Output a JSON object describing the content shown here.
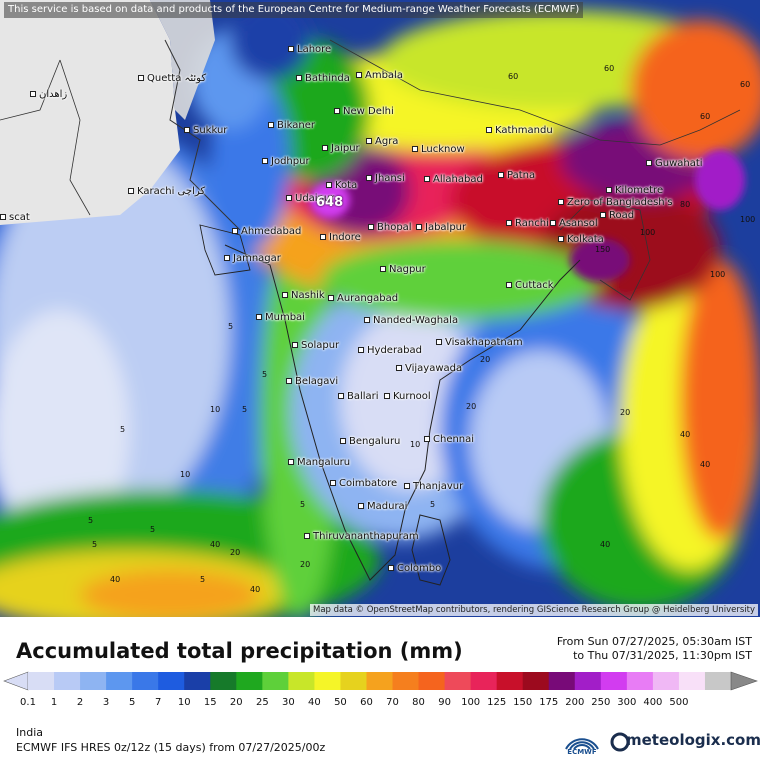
{
  "map": {
    "notice": "This service is based on data and products of the European Centre for Medium-range Weather Forecasts (ECMWF)",
    "attribution": "Map data © OpenStreetMap contributors, rendering GIScience Research Group @ Heidelberg University",
    "cities": [
      {
        "name": "Lahore",
        "key": "lahore"
      },
      {
        "name": "Quetta کوئٹہ",
        "key": "quetta"
      },
      {
        "name": "Bathinda",
        "key": "bathinda"
      },
      {
        "name": "Ambala",
        "key": "ambala"
      },
      {
        "name": "زاهدان",
        "key": "zahedan"
      },
      {
        "name": "New Delhi",
        "key": "new-delhi"
      },
      {
        "name": "Sukkur",
        "key": "sukkur"
      },
      {
        "name": "Bikaner",
        "key": "bikaner"
      },
      {
        "name": "Kathmandu",
        "key": "kathmandu"
      },
      {
        "name": "Jaipur",
        "key": "jaipur"
      },
      {
        "name": "Agra",
        "key": "agra"
      },
      {
        "name": "Lucknow",
        "key": "lucknow"
      },
      {
        "name": "Jodhpur",
        "key": "jodhpur"
      },
      {
        "name": "Guwahati",
        "key": "guwahati"
      },
      {
        "name": "Karachi کراچی",
        "key": "karachi"
      },
      {
        "name": "Jhansi",
        "key": "jhansi"
      },
      {
        "name": "Allahabad",
        "key": "allahabad"
      },
      {
        "name": "Patna",
        "key": "patna"
      },
      {
        "name": "Kota",
        "key": "kota"
      },
      {
        "name": "Kilometre",
        "key": "kilometre"
      },
      {
        "name": "Zero of Bangladesh's",
        "key": "zero-bangladesh"
      },
      {
        "name": "Road",
        "key": "road"
      },
      {
        "name": "Udaipur",
        "key": "udaipur"
      },
      {
        "name": "scat",
        "key": "muscat"
      },
      {
        "name": "Ahmedabad",
        "key": "ahmedabad"
      },
      {
        "name": "Bhopal",
        "key": "bhopal"
      },
      {
        "name": "Jabalpur",
        "key": "jabalpur"
      },
      {
        "name": "Ranchi",
        "key": "ranchi"
      },
      {
        "name": "Asansol",
        "key": "asansol"
      },
      {
        "name": "Indore",
        "key": "indore"
      },
      {
        "name": "Kolkata",
        "key": "kolkata"
      },
      {
        "name": "Jamnagar",
        "key": "jamnagar"
      },
      {
        "name": "Nagpur",
        "key": "nagpur"
      },
      {
        "name": "Cuttack",
        "key": "cuttack"
      },
      {
        "name": "Nashik",
        "key": "nashik"
      },
      {
        "name": "Aurangabad",
        "key": "aurangabad"
      },
      {
        "name": "Mumbai",
        "key": "mumbai"
      },
      {
        "name": "Nanded-Waghala",
        "key": "nanded"
      },
      {
        "name": "Visakhapatnam",
        "key": "visakhapatnam"
      },
      {
        "name": "Solapur",
        "key": "solapur"
      },
      {
        "name": "Hyderabad",
        "key": "hyderabad"
      },
      {
        "name": "Vijayawada",
        "key": "vijayawada"
      },
      {
        "name": "Belagavi",
        "key": "belagavi"
      },
      {
        "name": "Ballari",
        "key": "ballari"
      },
      {
        "name": "Kurnool",
        "key": "kurnool"
      },
      {
        "name": "Bengaluru",
        "key": "bengaluru"
      },
      {
        "name": "Chennai",
        "key": "chennai"
      },
      {
        "name": "Mangaluru",
        "key": "mangaluru"
      },
      {
        "name": "Coimbatore",
        "key": "coimbatore"
      },
      {
        "name": "Thanjavur",
        "key": "thanjavur"
      },
      {
        "name": "Madurai",
        "key": "madurai"
      },
      {
        "name": "Thiruvananthapuram",
        "key": "thiruvananthapuram"
      },
      {
        "name": "Colombo",
        "key": "colombo"
      }
    ],
    "contour_labels": [
      "5",
      "5",
      "5",
      "5",
      "5",
      "5",
      "5",
      "5",
      "10",
      "10",
      "20",
      "20",
      "20",
      "20",
      "40",
      "40",
      "40",
      "40",
      "40",
      "40",
      "60",
      "60",
      "60",
      "60",
      "80",
      "100",
      "100",
      "100",
      "150",
      "5",
      "20",
      "40",
      "5",
      "10"
    ],
    "max_value": "648",
    "colors": {
      "sea": "#1c3e9e",
      "land_dry": "#e6e6e6",
      "border": "#333333"
    }
  },
  "legend": {
    "title": "Accumulated total precipitation (mm)",
    "from": "From Sun 07/27/2025, 05:30am IST",
    "to": "to Thu 07/31/2025, 11:30pm IST",
    "ticks": [
      "0.1",
      "1",
      "2",
      "3",
      "5",
      "7",
      "10",
      "15",
      "20",
      "25",
      "30",
      "40",
      "50",
      "60",
      "70",
      "80",
      "90",
      "100",
      "125",
      "150",
      "175",
      "200",
      "250",
      "300",
      "400",
      "500"
    ],
    "colors": [
      "#d8ddf5",
      "#b8caf5",
      "#8eb4f2",
      "#5d97ef",
      "#3a78e8",
      "#1e5ce0",
      "#1a3fa8",
      "#167a2a",
      "#1fa81f",
      "#5ed03a",
      "#c8e629",
      "#f5f528",
      "#e6d21e",
      "#f5a21e",
      "#f57f1e",
      "#f5641e",
      "#ee4a5a",
      "#e8245a",
      "#c8102a",
      "#9c0a1e",
      "#780a78",
      "#a21ec8",
      "#d23cf0",
      "#e87cf5",
      "#f0b8f5",
      "#f8e0f8",
      "#c8c8c8"
    ],
    "region": "India",
    "model": "ECMWF IFS HRES 0z/12z (15 days) from  07/27/2025/00z",
    "ecmwf_label": "ECMWF",
    "brand": "meteologix.com"
  }
}
